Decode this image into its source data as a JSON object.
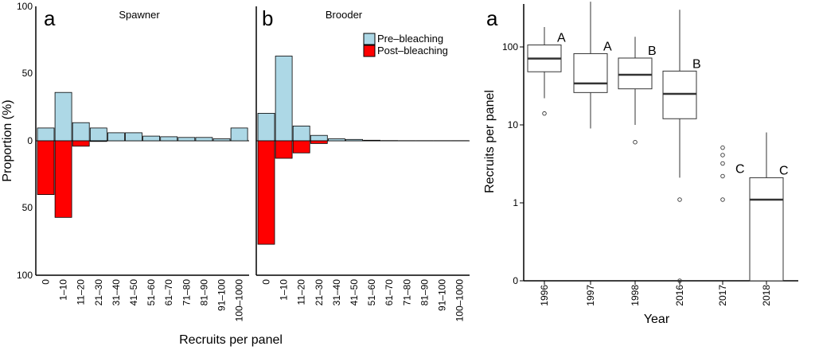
{
  "chart_data": [
    {
      "type": "bar",
      "panel_label": "a",
      "title": "Spawner",
      "xlabel": "Recruits per panel",
      "ylabel": "Proportion (%)",
      "y_tick_labels": [
        "100",
        "50",
        "0",
        "50",
        "100"
      ],
      "categories": [
        "0",
        "1–10",
        "11–20",
        "21–30",
        "31–40",
        "41–50",
        "51–60",
        "61–70",
        "71–80",
        "81–90",
        "91–100",
        "100–1000"
      ],
      "series": [
        {
          "name": "Pre–bleaching",
          "values": [
            9.5,
            36,
            13.5,
            9.5,
            6,
            6,
            3.5,
            3,
            2.5,
            2.5,
            1.5,
            9.5
          ]
        },
        {
          "name": "Post–bleaching",
          "values": [
            -40,
            -57,
            -4,
            -0.5,
            0,
            0,
            0,
            0,
            0,
            0,
            0,
            0
          ]
        }
      ],
      "ylim": [
        -100,
        100
      ],
      "colors": {
        "pre": "#add8e6",
        "post": "#ff0000"
      }
    },
    {
      "type": "bar",
      "panel_label": "b",
      "title": "Brooder",
      "xlabel": "Recruits per panel",
      "ylabel": "",
      "categories": [
        "0",
        "1–10",
        "11–20",
        "21–30",
        "31–40",
        "41–50",
        "51–60",
        "61–70",
        "71–80",
        "81–90",
        "91–100",
        "100–1000"
      ],
      "legend": {
        "position": "top-right",
        "entries": [
          "Pre–bleaching",
          "Post–bleaching"
        ]
      },
      "series": [
        {
          "name": "Pre–bleaching",
          "values": [
            20.5,
            63,
            11,
            4,
            1.5,
            1,
            0.4,
            0.2,
            0.1,
            0.1,
            0.1,
            0.1
          ]
        },
        {
          "name": "Post–bleaching",
          "values": [
            -77,
            -13,
            -9,
            -2,
            0,
            0,
            0,
            0,
            0,
            0,
            0,
            0
          ]
        }
      ],
      "ylim": [
        -100,
        100
      ],
      "colors": {
        "pre": "#add8e6",
        "post": "#ff0000"
      }
    },
    {
      "type": "box",
      "panel_label": "a",
      "xlabel": "Year",
      "ylabel": "Recruits per panel",
      "scale": "log",
      "y_ticks": [
        0,
        1,
        10,
        100
      ],
      "y_tick_labels": [
        "0",
        "1",
        "10",
        "100"
      ],
      "categories": [
        "1996",
        "1997",
        "1998",
        "2016",
        "2017",
        "2018"
      ],
      "boxes": [
        {
          "year": "1996",
          "whisker_low": 22,
          "q1": 48,
          "median": 71,
          "q3": 106,
          "whisker_high": 180,
          "outliers": [
            14
          ],
          "group": "A"
        },
        {
          "year": "1997",
          "whisker_low": 9,
          "q1": 26,
          "median": 34,
          "q3": 82,
          "whisker_high": 380,
          "outliers": [],
          "group": "A"
        },
        {
          "year": "1998",
          "whisker_low": 10,
          "q1": 29,
          "median": 44,
          "q3": 72,
          "whisker_high": 135,
          "outliers": [
            6
          ],
          "group": "B"
        },
        {
          "year": "2016",
          "whisker_low": 2.1,
          "q1": 12,
          "median": 25,
          "q3": 49,
          "whisker_high": 300,
          "outliers": [
            1.1,
            0
          ],
          "group": "B"
        },
        {
          "year": "2017",
          "whisker_low": null,
          "q1": null,
          "median": null,
          "q3": null,
          "whisker_high": null,
          "outliers": [
            1.1,
            2.2,
            3.2,
            4.1,
            5.1
          ],
          "group": "C"
        },
        {
          "year": "2018",
          "whisker_low": 0,
          "q1": 0,
          "median": 1.1,
          "q3": 2.1,
          "whisker_high": 8,
          "outliers": [],
          "group": "C"
        }
      ]
    }
  ]
}
